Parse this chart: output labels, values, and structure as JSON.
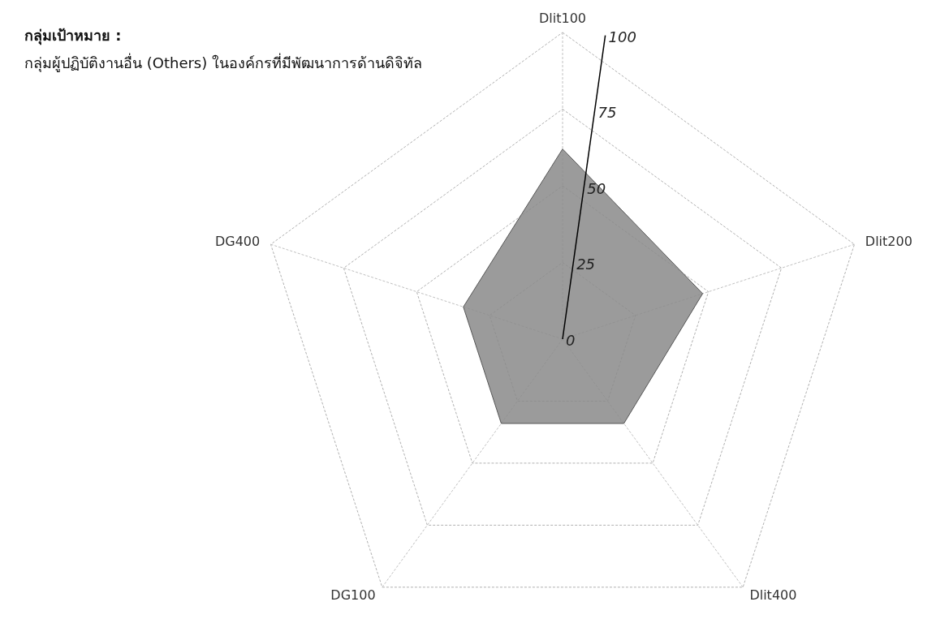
{
  "chart_data": {
    "type": "radar",
    "categories": [
      "Dlit100",
      "Dlit200",
      "Dlit400",
      "DG100",
      "DG400"
    ],
    "series": [
      {
        "color": "#8a8a8a",
        "values": [
          62,
          48,
          34,
          34,
          34
        ]
      }
    ],
    "ylim": [
      0,
      100
    ],
    "yticks": [
      0,
      25,
      50,
      75,
      100
    ],
    "grid": true,
    "annotations": [
      "**กลุ่มเป้าหมาย :**",
      "กลุ่มผู้ปฏิบัติงานอื่น (Others) ในองค์กรที่มีพัฒนาการด้านดิจิทัล"
    ]
  }
}
